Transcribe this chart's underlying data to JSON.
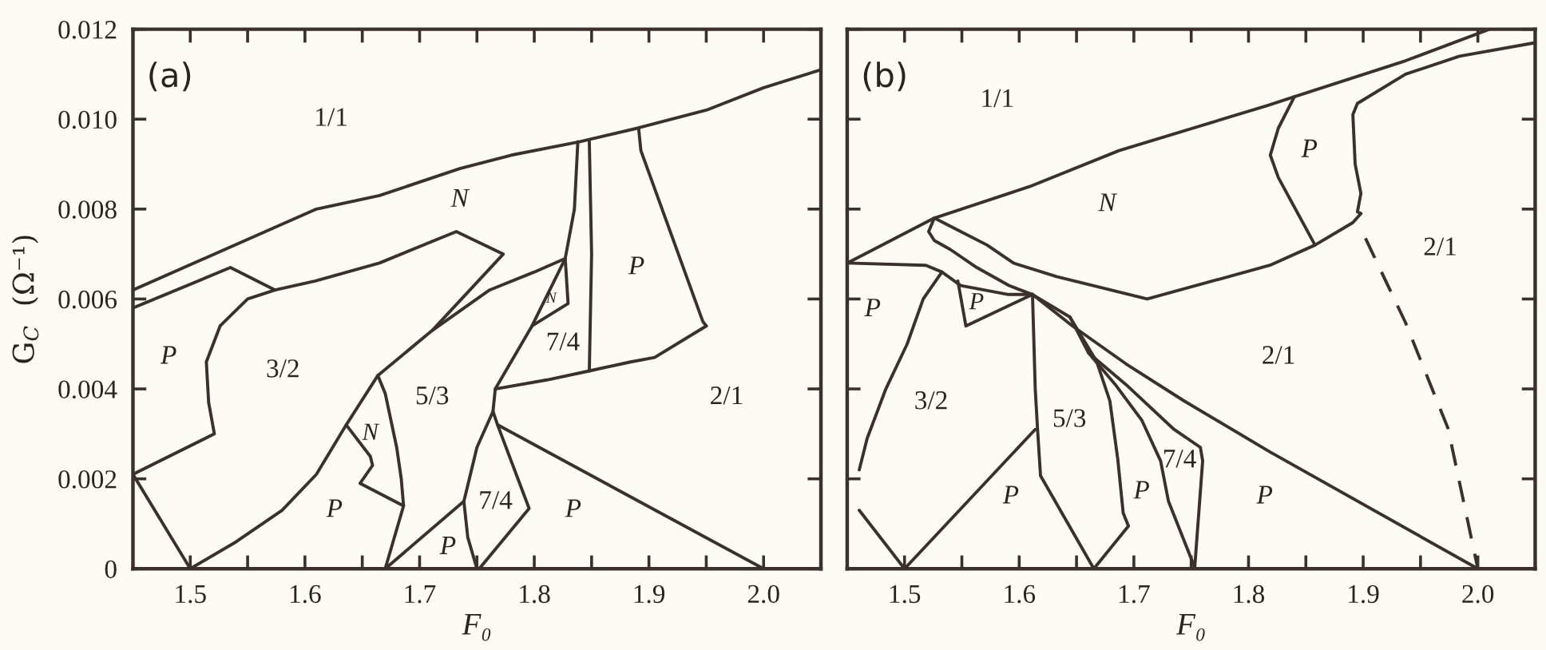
{
  "chart_data": [
    {
      "type": "line",
      "xlabel": "F₀",
      "ylabel": "G$_{C}$  (Ω⁻¹)",
      "xlim": [
        1.45,
        2.05
      ],
      "ylim": [
        0,
        0.012
      ],
      "xticks": [
        1.5,
        {
          "value": 1.55,
          "label": null
        },
        1.6,
        {
          "value": 1.65,
          "label": null
        },
        1.7,
        {
          "value": 1.75,
          "label": null
        },
        1.8,
        {
          "value": 1.85,
          "label": null
        },
        1.9,
        {
          "value": 1.95,
          "label": null
        },
        {
          "value": 2.0,
          "label": "2.0"
        }
      ],
      "yticks": [
        0,
        0.002,
        0.004,
        0.006,
        0.008,
        {
          "value": 0.01,
          "label": "0.010"
        },
        0.012
      ],
      "annotations": [
        "(a)",
        "1/1",
        "N",
        "P",
        "3/2",
        "N",
        "5/3",
        "P",
        "P",
        "7/4",
        "N",
        "7/4",
        "P",
        "2/1",
        "P"
      ],
      "series": [
        {
          "color": "#3b302a",
          "x": [
            1.45,
            1.53,
            1.61,
            1.665,
            1.735,
            1.78,
            1.84,
            1.89,
            1.95,
            2.0,
            2.05
          ],
          "values": [
            0.0062,
            0.0071,
            0.008,
            0.0083,
            0.0089,
            0.0092,
            0.0095,
            0.0098,
            0.0102,
            0.0107,
            0.0111
          ]
        },
        {
          "color": "#3b302a",
          "x": [
            1.45,
            1.535,
            1.574
          ],
          "values": [
            0.0058,
            0.0067,
            0.0062
          ]
        },
        {
          "color": "#3b302a",
          "x": [
            1.45,
            1.521,
            1.516,
            1.514,
            1.526,
            1.55,
            1.574,
            1.609,
            1.665,
            1.732,
            1.773,
            1.711,
            1.6636,
            1.636,
            1.61,
            1.58,
            1.54,
            1.5
          ],
          "values": [
            0.0021,
            0.003,
            0.0037,
            0.0046,
            0.0054,
            0.006,
            0.0062,
            0.0064,
            0.0068,
            0.0075,
            0.007,
            0.0053,
            0.0043,
            0.0032,
            0.0021,
            0.0013,
            0.0006,
            0
          ]
        },
        {
          "color": "#3b302a",
          "x": [
            1.45,
            1.5
          ],
          "values": [
            0.0021,
            0
          ]
        },
        {
          "color": "#3b302a",
          "x": [
            1.6636,
            1.67,
            1.68,
            1.684,
            1.686,
            1.67
          ],
          "values": [
            0.0043,
            0.0039,
            0.0027,
            0.002,
            0.0014,
            0
          ]
        },
        {
          "color": "#3b302a",
          "x": [
            1.636,
            1.657,
            1.659,
            1.648,
            1.686
          ],
          "values": [
            0.0032,
            0.0025,
            0.0023,
            0.0019,
            0.0014
          ]
        },
        {
          "color": "#3b302a",
          "x": [
            1.67,
            1.7386
          ],
          "values": [
            0,
            0.0015
          ]
        },
        {
          "color": "#3b302a",
          "x": [
            1.827,
            1.798,
            1.766,
            1.764,
            1.75,
            1.741,
            1.7386,
            1.742,
            1.75
          ],
          "values": [
            0.0069,
            0.0054,
            0.004,
            0.0035,
            0.0027,
            0.00175,
            0.0015,
            0.0007,
            0
          ]
        },
        {
          "color": "#3b302a",
          "x": [
            1.764,
            1.768,
            1.7955,
            1.752
          ],
          "values": [
            0.0035,
            0.0032,
            0.00134,
            0
          ]
        },
        {
          "color": "#3b302a",
          "x": [
            1.766,
            1.811,
            1.848,
            1.884,
            1.905,
            1.95
          ],
          "values": [
            0.004,
            0.0042,
            0.0044,
            0.0046,
            0.0047,
            0.0054
          ]
        },
        {
          "color": "#3b302a",
          "x": [
            1.95,
            1.947,
            1.893,
            1.891
          ],
          "values": [
            0.0054,
            0.0055,
            0.0093,
            0.0098
          ]
        },
        {
          "color": "#3b302a",
          "x": [
            1.848,
            1.85,
            1.848
          ],
          "values": [
            0.0095,
            0.007,
            0.0044
          ]
        },
        {
          "color": "#3b302a",
          "x": [
            1.838,
            1.835,
            1.827,
            1.8295,
            1.798
          ],
          "values": [
            0.0095,
            0.008,
            0.0069,
            0.0059,
            0.0054
          ]
        },
        {
          "color": "#3b302a",
          "x": [
            1.711,
            1.761,
            1.8,
            1.827
          ],
          "values": [
            0.0053,
            0.0062,
            0.0066,
            0.0069
          ]
        },
        {
          "color": "#3b302a",
          "x": [
            1.768,
            2.0
          ],
          "values": [
            0.0032,
            0
          ]
        }
      ]
    },
    {
      "type": "line",
      "xlabel": "F₀",
      "xlim": [
        1.45,
        2.05
      ],
      "ylim": [
        0,
        0.012
      ],
      "tick_labels": "x",
      "xticks": [
        1.5,
        {
          "value": 1.55,
          "label": null
        },
        1.6,
        {
          "value": 1.65,
          "label": null
        },
        1.7,
        {
          "value": 1.75,
          "label": null
        },
        1.8,
        {
          "value": 1.85,
          "label": null
        },
        1.9,
        {
          "value": 1.95,
          "label": null
        },
        {
          "value": 2.0,
          "label": "2.0"
        }
      ],
      "yticks": [
        0,
        0.002,
        0.004,
        0.006,
        0.008,
        0.01,
        0.012
      ],
      "annotations": [
        "(b)",
        "1/1",
        "N",
        "P",
        "2/1",
        "2/1",
        "P",
        "P",
        "3/2",
        "P",
        "5/3",
        "P",
        "7/4",
        "P"
      ],
      "series": [
        {
          "color": "#3b302a",
          "x": [
            1.45,
            1.526,
            1.609,
            1.687,
            1.816,
            1.84,
            1.937,
            2.01
          ],
          "values": [
            0.0068,
            0.0078,
            0.0085,
            0.0093,
            0.0103,
            0.0105,
            0.0113,
            0.012
          ]
        },
        {
          "color": "#3b302a",
          "x": [
            1.526,
            1.549,
            1.572,
            1.595,
            1.6326,
            1.7116,
            1.8186,
            1.858,
            1.891,
            1.898
          ],
          "values": [
            0.0078,
            0.0075,
            0.0072,
            0.0068,
            0.0065,
            0.006,
            0.00675,
            0.0072,
            0.0077,
            0.0079
          ]
        },
        {
          "color": "#3b302a",
          "x": [
            1.526,
            1.521,
            1.526,
            1.54,
            1.563,
            1.591,
            1.6116,
            1.6465,
            1.693,
            1.744,
            1.8186,
            2.0
          ],
          "values": [
            0.0078,
            0.0075,
            0.0073,
            0.0071,
            0.0067,
            0.0063,
            0.0061,
            0.0054,
            0.00456,
            0.00373,
            0.0026,
            0
          ]
        },
        {
          "color": "#3b302a",
          "x": [
            1.45,
            1.5186,
            1.5326,
            1.549,
            1.5907,
            1.6116
          ],
          "values": [
            0.0068,
            0.00675,
            0.0066,
            0.0063,
            0.0061,
            0.0061
          ]
        },
        {
          "color": "#3b302a",
          "x": [
            1.5326,
            1.5163,
            1.5023,
            1.4837,
            1.4674,
            1.4605
          ],
          "values": [
            0.0066,
            0.006,
            0.005,
            0.004,
            0.0029,
            0.0022
          ]
        },
        {
          "color": "#3b302a",
          "x": [
            1.4605,
            1.5
          ],
          "values": [
            0.0013,
            0
          ]
        },
        {
          "color": "#3b302a",
          "x": [
            1.5,
            1.614
          ],
          "values": [
            0,
            0.0031
          ]
        },
        {
          "color": "#3b302a",
          "x": [
            1.6116,
            1.614,
            1.616,
            1.6186,
            1.6651
          ],
          "values": [
            0.0061,
            0.004,
            0.0031,
            0.00207,
            0
          ]
        },
        {
          "color": "#3b302a",
          "x": [
            1.6442,
            1.6674,
            1.6791,
            1.686,
            1.6907,
            1.6953,
            1.6651
          ],
          "values": [
            0.0056,
            0.00462,
            0.00373,
            0.00243,
            0.00124,
            0.00095,
            0
          ]
        },
        {
          "color": "#3b302a",
          "x": [
            1.6116,
            1.6442,
            1.6605,
            1.693,
            1.735,
            1.758,
            1.76,
            1.753
          ],
          "values": [
            0.0061,
            0.0056,
            0.0048,
            0.0041,
            0.0031,
            0.0027,
            0.0024,
            0
          ]
        },
        {
          "color": "#3b302a",
          "x": [
            1.6605,
            1.6837,
            1.707,
            1.7233,
            1.7302,
            1.7535
          ],
          "values": [
            0.0048,
            0.0041,
            0.0033,
            0.0024,
            0.0015,
            0
          ]
        },
        {
          "color": "#3b302a",
          "x": [
            1.5465,
            1.5535,
            1.6116
          ],
          "values": [
            0.0064,
            0.0054,
            0.0061
          ]
        },
        {
          "color": "#3b302a",
          "x": [
            1.84,
            1.826,
            1.819,
            1.826,
            1.858
          ],
          "values": [
            0.0105,
            0.0098,
            0.0092,
            0.0087,
            0.0072
          ]
        },
        {
          "color": "#3b302a",
          "x": [
            2.05,
            1.984,
            1.937,
            1.895,
            1.891,
            1.893,
            1.898,
            1.895,
            1.898
          ],
          "values": [
            0.0117,
            0.0114,
            0.011,
            0.01035,
            0.0101,
            0.009,
            0.00835,
            0.00794,
            0.0079
          ]
        },
        {
          "color": "#3b302a",
          "line_style": "dashed",
          "x": [
            1.902,
            1.937,
            1.974,
            2.0
          ],
          "values": [
            0.00735,
            0.00547,
            0.00312,
            0
          ]
        }
      ]
    }
  ]
}
